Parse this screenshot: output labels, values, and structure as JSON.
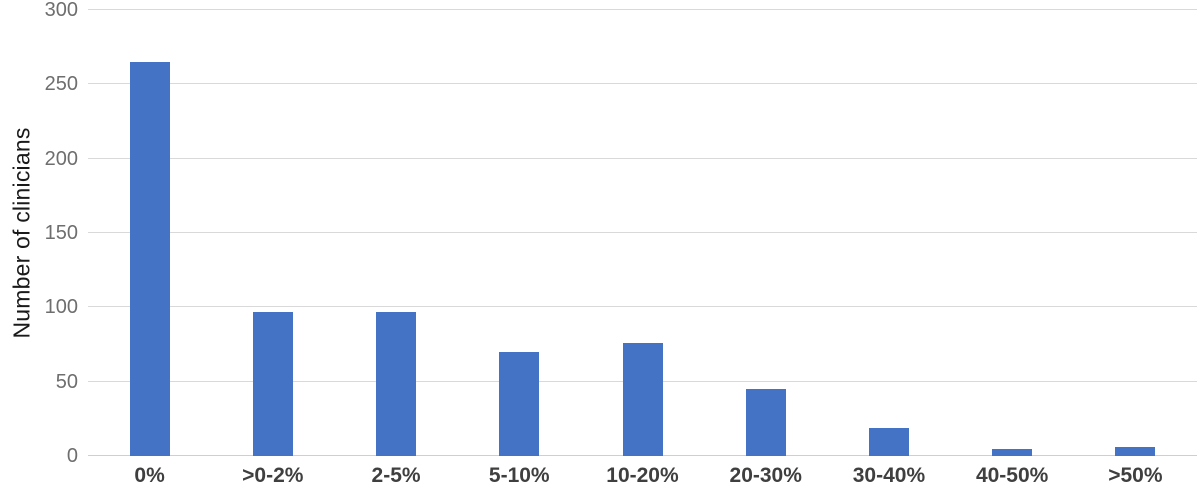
{
  "chart_data": {
    "type": "bar",
    "title": "",
    "xlabel": "",
    "ylabel": "Number of clinicians",
    "categories": [
      "0%",
      ">0-2%",
      "2-5%",
      "5-10%",
      "10-20%",
      "20-30%",
      "30-40%",
      "40-50%",
      ">50%"
    ],
    "values": [
      265,
      97,
      97,
      70,
      76,
      45,
      19,
      5,
      6
    ],
    "ylim": [
      0,
      300
    ],
    "yticks": [
      0,
      50,
      100,
      150,
      200,
      250,
      300
    ],
    "grid": "horizontal",
    "legend_position": "none",
    "bar_color": "#4472c4",
    "gridline_color": "#d9d9d9",
    "tick_label_color": "#6e6e6e",
    "x_label_color": "#3f3f3f",
    "background_color": "#ffffff"
  }
}
